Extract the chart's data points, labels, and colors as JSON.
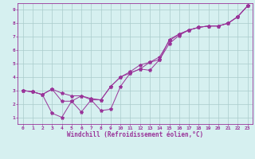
{
  "xlabel": "Windchill (Refroidissement éolien,°C)",
  "background_color": "#d6f0f0",
  "grid_color": "#aacccc",
  "line_color": "#993399",
  "xlim": [
    -0.5,
    23.5
  ],
  "ylim": [
    0.5,
    9.5
  ],
  "xticks": [
    0,
    1,
    2,
    3,
    4,
    5,
    6,
    7,
    8,
    9,
    10,
    11,
    12,
    13,
    14,
    15,
    16,
    17,
    18,
    19,
    20,
    21,
    22,
    23
  ],
  "yticks": [
    1,
    2,
    3,
    4,
    5,
    6,
    7,
    8,
    9
  ],
  "series1_x": [
    0,
    1,
    2,
    3,
    4,
    5,
    6,
    7,
    8,
    9,
    10,
    11,
    12,
    13,
    14,
    15,
    16,
    17,
    18,
    19,
    20,
    21,
    22,
    23
  ],
  "series1_y": [
    3.0,
    2.9,
    2.7,
    1.3,
    1.0,
    2.2,
    1.4,
    2.3,
    1.5,
    1.6,
    3.3,
    4.3,
    4.6,
    4.5,
    5.3,
    6.8,
    7.2,
    7.5,
    7.7,
    7.8,
    7.8,
    8.0,
    8.5,
    9.3
  ],
  "series2_x": [
    0,
    1,
    2,
    3,
    4,
    5,
    6,
    7,
    8,
    9,
    10,
    11,
    12,
    13,
    14,
    15,
    16,
    17,
    18,
    19,
    20,
    21,
    22,
    23
  ],
  "series2_y": [
    3.0,
    2.9,
    2.7,
    3.1,
    2.8,
    2.6,
    2.6,
    2.4,
    2.3,
    3.3,
    4.0,
    4.3,
    4.6,
    5.1,
    5.3,
    6.5,
    7.1,
    7.5,
    7.7,
    7.8,
    7.8,
    8.0,
    8.5,
    9.3
  ],
  "series3_x": [
    0,
    1,
    2,
    3,
    4,
    5,
    6,
    7,
    8,
    9,
    10,
    11,
    12,
    13,
    14,
    15,
    16,
    17,
    18,
    19,
    20,
    21,
    22,
    23
  ],
  "series3_y": [
    3.0,
    2.9,
    2.7,
    3.1,
    2.2,
    2.2,
    2.6,
    2.3,
    2.3,
    3.3,
    4.0,
    4.4,
    4.9,
    5.1,
    5.5,
    6.7,
    7.2,
    7.5,
    7.7,
    7.8,
    7.8,
    8.0,
    8.5,
    9.3
  ]
}
